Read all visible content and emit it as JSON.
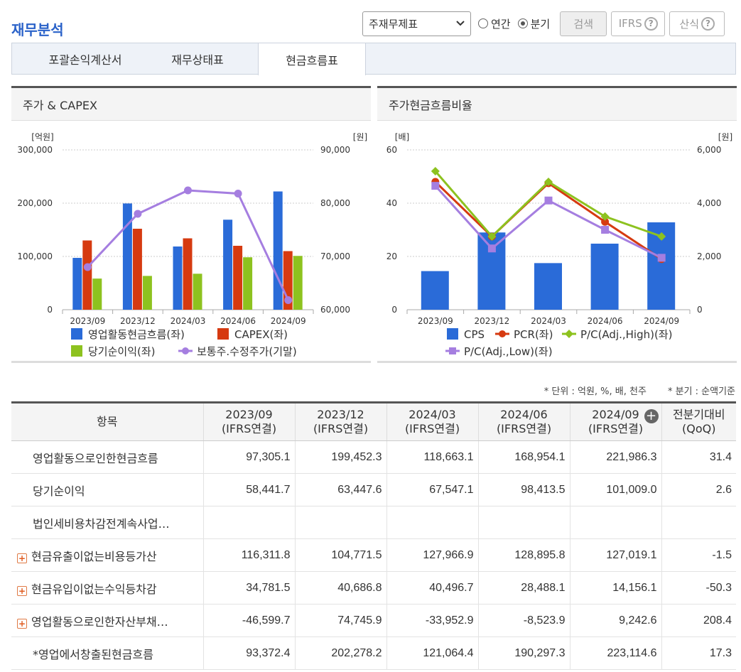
{
  "title": "재무분석",
  "controls": {
    "statement_select": "주재무제표",
    "radio_annual": "연간",
    "radio_quarter": "분기",
    "search_label": "검색",
    "ifrs_label": "IFRS",
    "formula_label": "산식",
    "help_icon": "question-circle-icon"
  },
  "tabs": [
    {
      "label": "포괄손익계산서",
      "active": false
    },
    {
      "label": "재무상태표",
      "active": false
    },
    {
      "label": "현금흐름표",
      "active": true
    }
  ],
  "chart_data": [
    {
      "type": "bar+line",
      "title": "주가 & CAPEX",
      "left_unit": "[억원]",
      "right_unit": "[원]",
      "categories": [
        "2023/09",
        "2023/12",
        "2024/03",
        "2024/06",
        "2024/09"
      ],
      "y_left": {
        "min": 0,
        "max": 300000,
        "ticks": [
          "0",
          "100,000",
          "200,000",
          "300,000"
        ]
      },
      "y_right": {
        "min": 60000,
        "max": 90000,
        "ticks": [
          "60,000",
          "70,000",
          "80,000",
          "90,000"
        ]
      },
      "series": [
        {
          "name": "영업활동현금흐름(좌)",
          "type": "bar",
          "axis": "left",
          "color": "#2a6bd8",
          "values": [
            97305.1,
            199452.3,
            118663.1,
            168954.1,
            221986.3
          ]
        },
        {
          "name": "CAPEX(좌)",
          "type": "bar",
          "axis": "left",
          "color": "#d63a10",
          "values": [
            130000,
            152000,
            134000,
            120000,
            110000
          ]
        },
        {
          "name": "당기순이익(좌)",
          "type": "bar",
          "axis": "left",
          "color": "#8dc21f",
          "values": [
            58441.7,
            63447.6,
            67547.1,
            98413.5,
            101009.0
          ]
        },
        {
          "name": "보통주.수정주가(기말)",
          "type": "line",
          "axis": "right",
          "color": "#a57ee0",
          "values": [
            68000,
            78000,
            82400,
            81800,
            61800
          ]
        }
      ]
    },
    {
      "type": "bar+line",
      "title": "주가현금흐름비율",
      "left_unit": "[배]",
      "right_unit": "[원]",
      "categories": [
        "2023/09",
        "2023/12",
        "2024/03",
        "2024/06",
        "2024/09"
      ],
      "y_left": {
        "min": 0,
        "max": 60,
        "ticks": [
          "0",
          "20",
          "40",
          "60"
        ]
      },
      "y_right": {
        "min": 0,
        "max": 6000,
        "ticks": [
          "0",
          "2,000",
          "4,000",
          "6,000"
        ]
      },
      "series": [
        {
          "name": "CPS",
          "type": "bar",
          "axis": "right",
          "color": "#2a6bd8",
          "values": [
            1450,
            2900,
            1750,
            2480,
            3280
          ]
        },
        {
          "name": "PCR(좌)",
          "type": "line",
          "axis": "left",
          "color": "#d63a10",
          "marker": "circle",
          "values": [
            48,
            27.5,
            47.5,
            33,
            19
          ]
        },
        {
          "name": "P/C(Adj.,High)(좌)",
          "type": "line",
          "axis": "left",
          "color": "#8dc21f",
          "marker": "diamond",
          "values": [
            52,
            27.5,
            48,
            35,
            27.5
          ]
        },
        {
          "name": "P/C(Adj.,Low)(좌)",
          "type": "line",
          "axis": "left",
          "color": "#a57ee0",
          "marker": "square",
          "values": [
            46.5,
            23,
            41,
            30,
            19.5
          ]
        }
      ]
    }
  ],
  "notes": {
    "unit": "* 단위 : 억원, %, 배, 천주",
    "basis": "* 분기 : 순액기준"
  },
  "table": {
    "headers": [
      {
        "line1": "항목",
        "line2": ""
      },
      {
        "line1": "2023/09",
        "line2": "(IFRS연결)"
      },
      {
        "line1": "2023/12",
        "line2": "(IFRS연결)"
      },
      {
        "line1": "2024/03",
        "line2": "(IFRS연결)"
      },
      {
        "line1": "2024/06",
        "line2": "(IFRS연결)"
      },
      {
        "line1": "2024/09",
        "line2": "(IFRS연결)"
      },
      {
        "line1": "전분기대비",
        "line2": "(QoQ)"
      }
    ],
    "rows": [
      {
        "label": "영업활동으로인한현금흐름",
        "expandable": false,
        "values": [
          "97,305.1",
          "199,452.3",
          "118,663.1",
          "168,954.1",
          "221,986.3",
          "31.4"
        ]
      },
      {
        "label": "당기순이익",
        "expandable": false,
        "values": [
          "58,441.7",
          "63,447.6",
          "67,547.1",
          "98,413.5",
          "101,009.0",
          "2.6"
        ]
      },
      {
        "label": "법인세비용차감전계속사업…",
        "expandable": false,
        "values": [
          "",
          "",
          "",
          "",
          "",
          ""
        ]
      },
      {
        "label": "현금유출이없는비용등가산",
        "expandable": true,
        "values": [
          "116,311.8",
          "104,771.5",
          "127,966.9",
          "128,895.8",
          "127,019.1",
          "-1.5"
        ]
      },
      {
        "label": "현금유입이없는수익등차감",
        "expandable": true,
        "values": [
          "34,781.5",
          "40,686.8",
          "40,496.7",
          "28,488.1",
          "14,156.1",
          "-50.3"
        ]
      },
      {
        "label": "영업활동으로인한자산부채…",
        "expandable": true,
        "values": [
          "-46,599.7",
          "74,745.9",
          "-33,952.9",
          "-8,523.9",
          "9,242.6",
          "208.4"
        ]
      },
      {
        "label": "*영업에서창출된현금흐름",
        "expandable": false,
        "values": [
          "93,372.4",
          "202,278.2",
          "121,064.4",
          "190,297.3",
          "223,114.6",
          "17.3"
        ]
      }
    ]
  }
}
